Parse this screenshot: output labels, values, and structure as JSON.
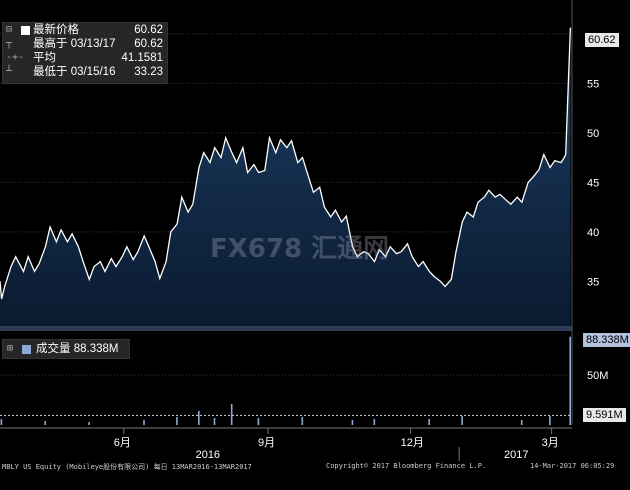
{
  "legend": {
    "rows": [
      {
        "mark": "⊟",
        "label": "最新价格",
        "value": "60.62"
      },
      {
        "mark": "┬",
        "label": "最高于 03/13/17",
        "value": "60.62"
      },
      {
        "mark": "-+-",
        "label": "平均",
        "value": "41.1581"
      },
      {
        "mark": "┴",
        "label": "最低于 03/15/16",
        "value": "33.23"
      }
    ]
  },
  "volume_legend": {
    "mark": "⊞",
    "label": "成交量",
    "value": "88.338M"
  },
  "tags": {
    "last_price": "60.62",
    "last_volume": "88.338M",
    "avg_volume": "9.591M"
  },
  "footer": {
    "left": "MBLY US Equity (Mobileye股份有限公司)  每日 13MAR2016-13MAR2017",
    "center": "Copyright© 2017 Bloomberg Finance L.P.",
    "right": "14-Mar-2017 06:05:29"
  },
  "watermark": "FX678 汇通网",
  "colors": {
    "background": "#000000",
    "line": "#ffffff",
    "area_top": "#1d3f66",
    "area_bottom": "#0a1a30",
    "volume": "#8fa9d6",
    "grid": "#3a3a3a"
  },
  "chart_data": [
    {
      "type": "area",
      "title": "",
      "xlabel": "",
      "ylabel": "",
      "ylim": [
        30.5,
        62
      ],
      "yticks": [
        35,
        40,
        45,
        50,
        55,
        60
      ],
      "grid": true,
      "legend_position": "top-left",
      "x_tick_labels": [
        {
          "label": "6月",
          "date": "2016-06-01"
        },
        {
          "label": "9月",
          "date": "2016-09-01"
        },
        {
          "label": "12月",
          "date": "2016-12-01"
        },
        {
          "label": "3月",
          "date": "2017-03-01"
        }
      ],
      "year_labels": [
        "2016",
        "2017"
      ],
      "series": [
        {
          "name": "最新价格",
          "points": [
            [
              "2016-03-14",
              35.0
            ],
            [
              "2016-03-15",
              33.23
            ],
            [
              "2016-03-17",
              34.5
            ],
            [
              "2016-03-21",
              36.5
            ],
            [
              "2016-03-24",
              37.5
            ],
            [
              "2016-03-29",
              36.0
            ],
            [
              "2016-04-01",
              37.5
            ],
            [
              "2016-04-05",
              36.0
            ],
            [
              "2016-04-08",
              36.8
            ],
            [
              "2016-04-12",
              38.5
            ],
            [
              "2016-04-15",
              40.5
            ],
            [
              "2016-04-19",
              39.0
            ],
            [
              "2016-04-22",
              40.2
            ],
            [
              "2016-04-26",
              39.0
            ],
            [
              "2016-04-29",
              39.8
            ],
            [
              "2016-05-03",
              38.5
            ],
            [
              "2016-05-06",
              37.0
            ],
            [
              "2016-05-10",
              35.2
            ],
            [
              "2016-05-13",
              36.5
            ],
            [
              "2016-05-17",
              37.0
            ],
            [
              "2016-05-20",
              36.0
            ],
            [
              "2016-05-24",
              37.3
            ],
            [
              "2016-05-27",
              36.5
            ],
            [
              "2016-05-31",
              37.5
            ],
            [
              "2016-06-03",
              38.5
            ],
            [
              "2016-06-07",
              37.2
            ],
            [
              "2016-06-10",
              38.0
            ],
            [
              "2016-06-14",
              39.6
            ],
            [
              "2016-06-17",
              38.5
            ],
            [
              "2016-06-21",
              37.0
            ],
            [
              "2016-06-24",
              35.3
            ],
            [
              "2016-06-28",
              37.0
            ],
            [
              "2016-07-01",
              40.0
            ],
            [
              "2016-07-05",
              40.8
            ],
            [
              "2016-07-08",
              43.5
            ],
            [
              "2016-07-12",
              42.0
            ],
            [
              "2016-07-15",
              42.8
            ],
            [
              "2016-07-19",
              46.5
            ],
            [
              "2016-07-22",
              48.0
            ],
            [
              "2016-07-26",
              47.0
            ],
            [
              "2016-07-29",
              48.5
            ],
            [
              "2016-08-02",
              47.5
            ],
            [
              "2016-08-05",
              49.5
            ],
            [
              "2016-08-09",
              48.0
            ],
            [
              "2016-08-12",
              47.0
            ],
            [
              "2016-08-16",
              48.5
            ],
            [
              "2016-08-19",
              46.0
            ],
            [
              "2016-08-23",
              46.8
            ],
            [
              "2016-08-26",
              46.0
            ],
            [
              "2016-08-30",
              46.2
            ],
            [
              "2016-09-02",
              49.5
            ],
            [
              "2016-09-06",
              48.0
            ],
            [
              "2016-09-09",
              49.3
            ],
            [
              "2016-09-13",
              48.5
            ],
            [
              "2016-09-16",
              49.2
            ],
            [
              "2016-09-20",
              47.0
            ],
            [
              "2016-09-23",
              47.5
            ],
            [
              "2016-09-27",
              45.5
            ],
            [
              "2016-09-30",
              44.0
            ],
            [
              "2016-10-04",
              44.5
            ],
            [
              "2016-10-07",
              42.5
            ],
            [
              "2016-10-11",
              41.5
            ],
            [
              "2016-10-14",
              42.2
            ],
            [
              "2016-10-18",
              41.0
            ],
            [
              "2016-10-21",
              41.6
            ],
            [
              "2016-10-25",
              38.5
            ],
            [
              "2016-10-28",
              37.5
            ],
            [
              "2016-11-01",
              38.0
            ],
            [
              "2016-11-04",
              37.8
            ],
            [
              "2016-11-08",
              37.0
            ],
            [
              "2016-11-11",
              38.2
            ],
            [
              "2016-11-15",
              37.5
            ],
            [
              "2016-11-18",
              38.5
            ],
            [
              "2016-11-22",
              37.8
            ],
            [
              "2016-11-25",
              38.0
            ],
            [
              "2016-11-29",
              38.8
            ],
            [
              "2016-12-02",
              37.5
            ],
            [
              "2016-12-06",
              36.5
            ],
            [
              "2016-12-09",
              37.0
            ],
            [
              "2016-12-13",
              36.0
            ],
            [
              "2016-12-16",
              35.5
            ],
            [
              "2016-12-20",
              35.0
            ],
            [
              "2016-12-23",
              34.5
            ],
            [
              "2016-12-27",
              35.2
            ],
            [
              "2016-12-30",
              38.0
            ],
            [
              "2017-01-03",
              41.0
            ],
            [
              "2017-01-06",
              42.0
            ],
            [
              "2017-01-10",
              41.5
            ],
            [
              "2017-01-13",
              43.0
            ],
            [
              "2017-01-17",
              43.5
            ],
            [
              "2017-01-20",
              44.2
            ],
            [
              "2017-01-24",
              43.5
            ],
            [
              "2017-01-27",
              43.8
            ],
            [
              "2017-01-31",
              43.2
            ],
            [
              "2017-02-03",
              42.8
            ],
            [
              "2017-02-07",
              43.5
            ],
            [
              "2017-02-10",
              43.0
            ],
            [
              "2017-02-14",
              45.0
            ],
            [
              "2017-02-17",
              45.5
            ],
            [
              "2017-02-21",
              46.3
            ],
            [
              "2017-02-24",
              47.8
            ],
            [
              "2017-02-28",
              46.5
            ],
            [
              "2017-03-03",
              47.2
            ],
            [
              "2017-03-07",
              47.0
            ],
            [
              "2017-03-09",
              47.5
            ],
            [
              "2017-03-10",
              47.8
            ],
            [
              "2017-03-13",
              60.62
            ]
          ]
        }
      ]
    },
    {
      "type": "bar",
      "title": "",
      "xlabel": "",
      "ylabel": "",
      "unit": "M",
      "ylim": [
        0,
        92
      ],
      "yticks": [
        {
          "label": "50M",
          "value": 50
        }
      ],
      "grid": true,
      "reference_line": {
        "name": "平均",
        "value": 9.591
      },
      "series": [
        {
          "name": "成交量",
          "points": [
            [
              "2016-03-15",
              6
            ],
            [
              "2016-04-12",
              4
            ],
            [
              "2016-05-10",
              3
            ],
            [
              "2016-06-14",
              5
            ],
            [
              "2016-07-05",
              8
            ],
            [
              "2016-07-19",
              14
            ],
            [
              "2016-07-29",
              7
            ],
            [
              "2016-08-09",
              21
            ],
            [
              "2016-08-26",
              7
            ],
            [
              "2016-09-23",
              8
            ],
            [
              "2016-10-25",
              5
            ],
            [
              "2016-11-08",
              6
            ],
            [
              "2016-12-13",
              6
            ],
            [
              "2017-01-03",
              9
            ],
            [
              "2017-02-10",
              5
            ],
            [
              "2017-02-28",
              9
            ],
            [
              "2017-03-13",
              88.338
            ]
          ]
        }
      ]
    }
  ]
}
